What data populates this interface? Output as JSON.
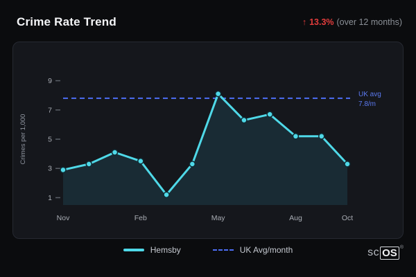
{
  "header": {
    "title": "Crime Rate Trend",
    "trend_arrow": "↑",
    "trend_value": "13.3%",
    "trend_note": "(over 12 months)"
  },
  "chart_data": {
    "type": "line",
    "title": "Crime Rate Trend",
    "x": [
      "Nov",
      "Dec",
      "Jan",
      "Feb",
      "Mar",
      "Apr",
      "May",
      "Jun",
      "Jul",
      "Aug",
      "Sep",
      "Oct"
    ],
    "x_tick_labels": [
      "Nov",
      "Feb",
      "May",
      "Aug",
      "Oct"
    ],
    "x_tick_indices": [
      0,
      3,
      6,
      9,
      11
    ],
    "series": [
      {
        "name": "Hemsby",
        "values": [
          2.9,
          3.3,
          4.1,
          3.5,
          1.2,
          3.3,
          8.1,
          6.3,
          6.7,
          5.2,
          5.2,
          3.3
        ]
      }
    ],
    "reference_line": {
      "name": "UK Avg/month",
      "value": 7.8,
      "label_line1": "UK avg",
      "label_line2": "7.8/m"
    },
    "ylabel": "Crimes per 1,000",
    "yticks": [
      1,
      3,
      5,
      7,
      9
    ],
    "ylim": [
      0.5,
      9.5
    ],
    "grid": false,
    "legend_position": "bottom",
    "colors": {
      "line": "#4fd9e8",
      "ref": "#4d6ef5",
      "area": "#1e3d49"
    }
  },
  "legend": {
    "items": [
      {
        "label": "Hemsby",
        "style": "solid"
      },
      {
        "label": "UK Avg/month",
        "style": "dashed"
      }
    ]
  },
  "logo": {
    "prefix": "sc",
    "suffix": "OS",
    "reg": "®"
  }
}
